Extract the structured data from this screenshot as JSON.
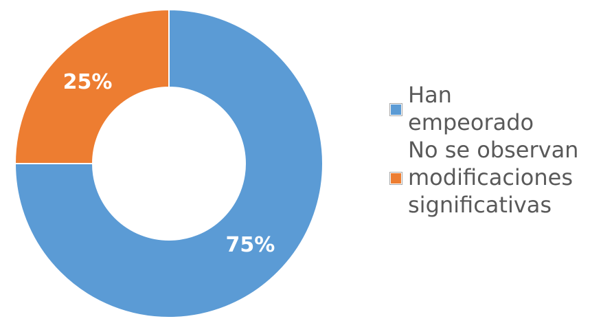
{
  "chart_data": {
    "type": "pie",
    "donut": true,
    "categories": [
      "Han empeorado",
      "No se observan modificaciones significativas"
    ],
    "values": [
      75,
      25
    ],
    "data_labels": [
      "75%",
      "25%"
    ],
    "colors": [
      "#5B9BD5",
      "#ED7D31"
    ],
    "legend_placement": "right"
  }
}
